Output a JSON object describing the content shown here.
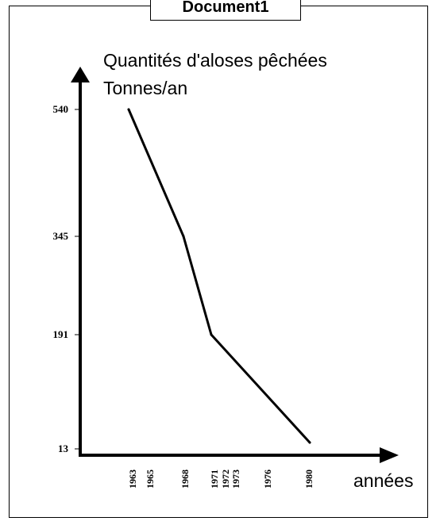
{
  "document": {
    "title": "Document1"
  },
  "chart_data": {
    "type": "line",
    "ylabel_line1": "Quantités d'aloses pêchées",
    "ylabel_line2": "Tonnes/an",
    "xlabel": "années",
    "x_tick_labels": [
      "1963",
      "1965",
      "1968",
      "1971",
      "1972",
      "1973",
      "1976",
      "1980"
    ],
    "y_tick_labels": [
      "13",
      "191",
      "345",
      "540"
    ],
    "series": [
      {
        "x": [
          1963,
          1968,
          1971,
          1980
        ],
        "values": [
          540,
          345,
          191,
          13
        ]
      }
    ],
    "line_color": "#000000"
  }
}
